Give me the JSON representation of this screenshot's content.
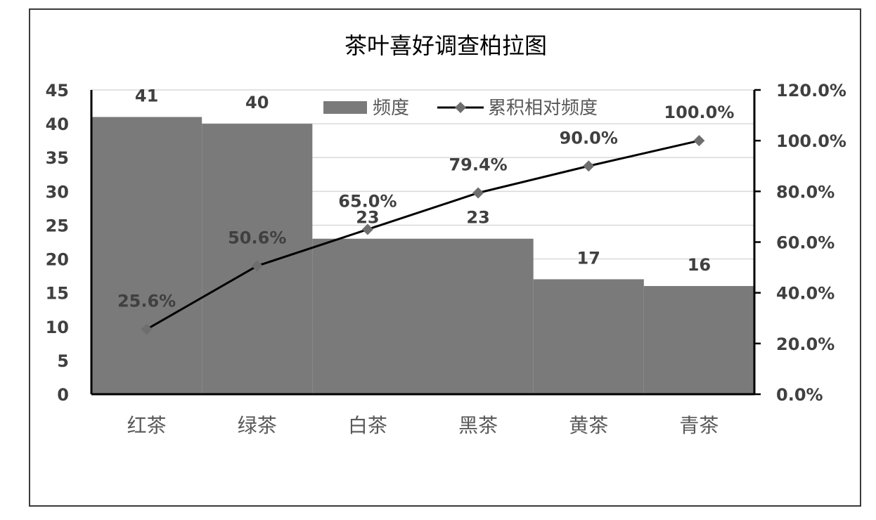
{
  "chart_data": {
    "type": "bar",
    "title": "茶叶喜好调查柏拉图",
    "categories": [
      "红茶",
      "绿茶",
      "白茶",
      "黑茶",
      "黄茶",
      "青茶"
    ],
    "series": [
      {
        "name": "频度",
        "type": "bar",
        "axis": "left",
        "values": [
          41,
          40,
          23,
          23,
          17,
          16
        ],
        "labels": [
          "41",
          "40",
          "23",
          "23",
          "17",
          "16"
        ],
        "color": "#7a7a7a"
      },
      {
        "name": "累积相对频度",
        "type": "line",
        "axis": "right",
        "values": [
          25.6,
          50.6,
          65.0,
          79.4,
          90.0,
          100.0
        ],
        "labels": [
          "25.6%",
          "50.6%",
          "65.0%",
          "79.4%",
          "90.0%",
          "100.0%"
        ],
        "color": "#000000",
        "marker_color": "#6e6e6e"
      }
    ],
    "y_left": {
      "ylim": [
        0,
        45
      ],
      "ticks": [
        "0",
        "5",
        "10",
        "15",
        "20",
        "25",
        "30",
        "35",
        "40",
        "45"
      ]
    },
    "y_right": {
      "ylim": [
        0,
        120
      ],
      "ticks": [
        "0.0%",
        "20.0%",
        "40.0%",
        "60.0%",
        "80.0%",
        "100.0%",
        "120.0%"
      ]
    },
    "grid": true,
    "legend": "top-center"
  }
}
